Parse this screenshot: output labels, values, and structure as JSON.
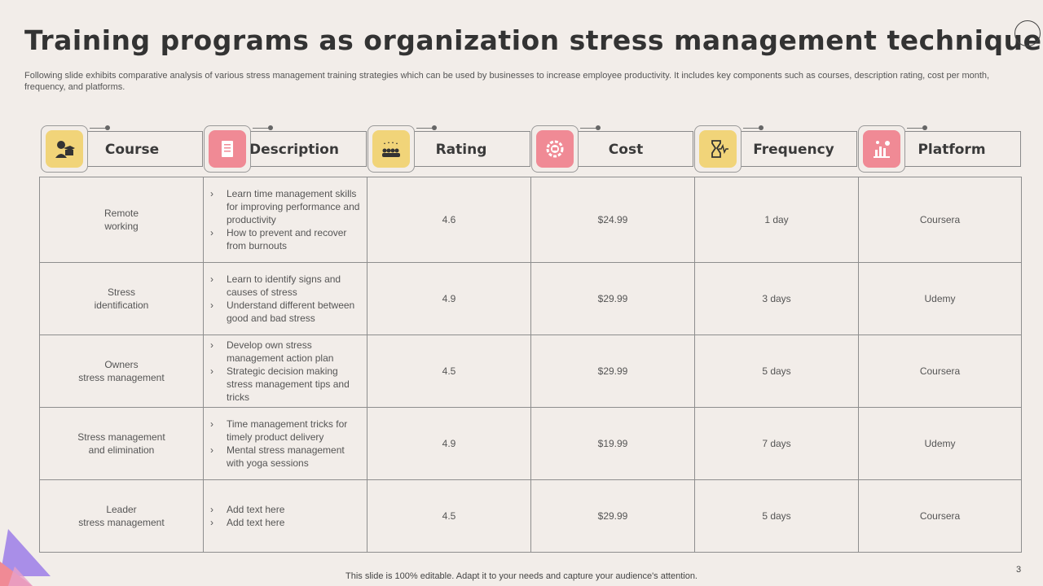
{
  "title": "Training programs as organization stress management techniques",
  "subtitle": "Following slide exhibits comparative analysis of various stress management training strategies which can be used by businesses to increase employee productivity. It includes key components such as courses, description rating, cost per month, frequency, and platforms.",
  "headers": [
    {
      "label": "Course",
      "icon": "student-graduate-icon",
      "tile_color": "#f1d479"
    },
    {
      "label": "Description",
      "icon": "document-icon",
      "tile_color": "#f08a95"
    },
    {
      "label": "Rating",
      "icon": "team-stars-icon",
      "tile_color": "#f1d479"
    },
    {
      "label": "Cost",
      "icon": "money-gear-icon",
      "tile_color": "#f08a95"
    },
    {
      "label": "Frequency",
      "icon": "hourglass-pulse-icon",
      "tile_color": "#f1d479"
    },
    {
      "label": "Platform",
      "icon": "platform-chart-icon",
      "tile_color": "#f08a95"
    }
  ],
  "rows": [
    {
      "course": [
        "Remote",
        "working"
      ],
      "description": [
        "Learn time management skills for improving performance  and productivity",
        "How to prevent  and recover  from burnouts"
      ],
      "rating": "4.6",
      "cost": "$24.99",
      "frequency": "1 day",
      "platform": "Coursera"
    },
    {
      "course": [
        "Stress",
        "identification"
      ],
      "description": [
        "Learn to identify signs and causes of stress",
        "Understand different between good and bad stress"
      ],
      "rating": "4.9",
      "cost": "$29.99",
      "frequency": "3 days",
      "platform": "Udemy"
    },
    {
      "course": [
        "Owners",
        "stress management"
      ],
      "description": [
        "Develop own stress management  action plan",
        "Strategic decision making stress management tips and tricks"
      ],
      "rating": "4.5",
      "cost": "$29.99",
      "frequency": "5 days",
      "platform": "Coursera"
    },
    {
      "course": [
        "Stress management",
        "and elimination"
      ],
      "description": [
        "Time management tricks for timely product delivery",
        "Mental stress management with yoga sessions"
      ],
      "rating": "4.9",
      "cost": "$19.99",
      "frequency": "7 days",
      "platform": "Udemy"
    },
    {
      "course": [
        "Leader",
        "stress management"
      ],
      "description": [
        "Add text here",
        "Add text here"
      ],
      "rating": "4.5",
      "cost": "$29.99",
      "frequency": "5 days",
      "platform": "Coursera"
    }
  ],
  "bullet_marker": "›",
  "footer": "This slide is 100% editable. Adapt it to your needs and capture your audience's attention.",
  "page_number": "3",
  "colors": {
    "background": "#f2ede9",
    "yellow": "#f1d479",
    "pink": "#f08a95",
    "purple": "#a98ee8"
  }
}
